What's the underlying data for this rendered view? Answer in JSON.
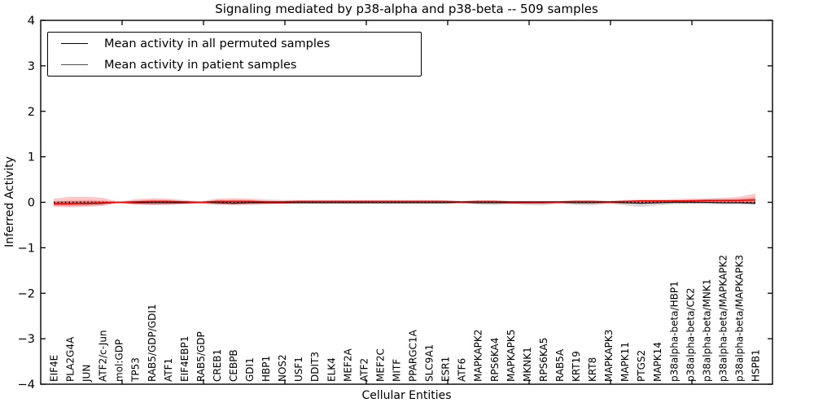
{
  "title": "Signaling mediated by p38-alpha and p38-beta -- 509 samples",
  "axes": {
    "ylabel": "Inferred Activity",
    "xlabel": "Cellular Entities"
  },
  "legend": {
    "entries": [
      {
        "label": "Mean activity in all permuted samples",
        "color": "#000000"
      },
      {
        "label": "Mean activity in patient samples",
        "color": "#ff0000"
      }
    ],
    "position": "upper left"
  },
  "chart_data": {
    "type": "line",
    "title": "Signaling mediated by p38-alpha and p38-beta -- 509 samples",
    "xlabel": "Cellular Entities",
    "ylabel": "Inferred Activity",
    "ylim": [
      -4,
      4
    ],
    "yticks": [
      4,
      3,
      2,
      1,
      0,
      -1,
      -2,
      -3,
      -4
    ],
    "grid": false,
    "legend_position": "upper left",
    "zero_line": {
      "y": 0,
      "style": "dotted",
      "color": "#000000"
    },
    "categories": [
      "EIF4E",
      "PLA2G4A",
      "JUN",
      "ATF2/c-Jun",
      "mol:GDP",
      "TP53",
      "RAB5/GDP/GDI1",
      "ATF1",
      "EIF4EBP1",
      "RAB5/GDP",
      "CREB1",
      "CEBPB",
      "GDI1",
      "HBP1",
      "NOS2",
      "USF1",
      "DDIT3",
      "ELK4",
      "MEF2A",
      "ATF2",
      "MEF2C",
      "MITF",
      "PPARGC1A",
      "SLC9A1",
      "ESR1",
      "ATF6",
      "MAPKAPK2",
      "RPS6KA4",
      "MAPKAPK5",
      "MKNK1",
      "RPS6KA5",
      "RAB5A",
      "KRT19",
      "KRT8",
      "MAPKAPK3",
      "MAPK11",
      "PTGS2",
      "MAPK14",
      "p38alpha-beta/HBP1",
      "p38alpha-beta/CK2",
      "p38alpha-beta/MNK1",
      "p38alpha-beta/MAPKAPK2",
      "p38alpha-beta/MAPKAPK3",
      "HSPB1"
    ],
    "series": [
      {
        "name": "Mean activity in all permuted samples",
        "color": "#000000",
        "band_color": "rgba(110,110,110,0.28)",
        "values": [
          -0.03,
          -0.03,
          -0.03,
          -0.02,
          0.0,
          -0.01,
          -0.01,
          -0.01,
          -0.01,
          0.0,
          -0.01,
          -0.02,
          -0.01,
          -0.01,
          -0.01,
          -0.01,
          -0.01,
          -0.01,
          -0.01,
          -0.01,
          -0.01,
          -0.01,
          -0.01,
          -0.01,
          -0.01,
          0.0,
          -0.01,
          -0.01,
          -0.01,
          -0.01,
          -0.01,
          0.0,
          -0.01,
          -0.01,
          0.0,
          -0.01,
          -0.02,
          -0.01,
          0.0,
          0.0,
          0.0,
          -0.01,
          -0.01,
          -0.02
        ],
        "band_upper": [
          0.02,
          0.03,
          0.03,
          0.02,
          0.01,
          0.02,
          0.02,
          0.02,
          0.01,
          0.01,
          0.02,
          0.02,
          0.02,
          0.02,
          0.01,
          0.01,
          0.01,
          0.01,
          0.01,
          0.01,
          0.01,
          0.01,
          0.01,
          0.01,
          0.01,
          0.01,
          0.01,
          0.01,
          0.01,
          0.01,
          0.01,
          0.01,
          0.02,
          0.02,
          0.01,
          0.03,
          0.05,
          0.03,
          0.02,
          0.02,
          0.02,
          0.02,
          0.02,
          0.02
        ],
        "band_lower": [
          -0.08,
          -0.09,
          -0.08,
          -0.06,
          -0.01,
          -0.05,
          -0.06,
          -0.06,
          -0.04,
          -0.02,
          -0.06,
          -0.07,
          -0.06,
          -0.05,
          -0.04,
          -0.03,
          -0.03,
          -0.03,
          -0.03,
          -0.03,
          -0.03,
          -0.03,
          -0.03,
          -0.03,
          -0.03,
          -0.02,
          -0.05,
          -0.06,
          -0.04,
          -0.06,
          -0.07,
          -0.03,
          -0.06,
          -0.07,
          -0.03,
          -0.07,
          -0.1,
          -0.07,
          -0.04,
          -0.04,
          -0.04,
          -0.05,
          -0.05,
          -0.06
        ]
      },
      {
        "name": "Mean activity in patient samples",
        "color": "#ff0000",
        "band_color": "rgba(255,0,0,0.22)",
        "values": [
          -0.03,
          -0.03,
          -0.02,
          -0.01,
          0.0,
          0.01,
          0.02,
          0.02,
          0.01,
          0.0,
          0.02,
          0.02,
          0.02,
          0.01,
          0.01,
          0.02,
          0.02,
          0.02,
          0.02,
          0.02,
          0.02,
          0.02,
          0.02,
          0.02,
          0.02,
          0.01,
          0.02,
          0.02,
          0.01,
          0.01,
          0.01,
          0.01,
          0.02,
          0.02,
          0.01,
          0.02,
          0.03,
          0.03,
          0.03,
          0.03,
          0.04,
          0.04,
          0.04,
          0.05
        ],
        "band_upper": [
          0.08,
          0.12,
          0.12,
          0.1,
          0.01,
          0.07,
          0.09,
          0.08,
          0.05,
          0.02,
          0.08,
          0.09,
          0.08,
          0.06,
          0.05,
          0.05,
          0.05,
          0.05,
          0.05,
          0.05,
          0.05,
          0.05,
          0.05,
          0.05,
          0.04,
          0.03,
          0.04,
          0.04,
          0.03,
          0.03,
          0.03,
          0.03,
          0.04,
          0.04,
          0.03,
          0.05,
          0.06,
          0.06,
          0.07,
          0.08,
          0.09,
          0.1,
          0.12,
          0.19
        ],
        "band_lower": [
          -0.1,
          -0.11,
          -0.1,
          -0.08,
          -0.01,
          -0.05,
          -0.06,
          -0.05,
          -0.03,
          -0.02,
          -0.04,
          -0.05,
          -0.04,
          -0.03,
          -0.02,
          -0.02,
          -0.02,
          -0.02,
          -0.02,
          -0.02,
          -0.01,
          -0.01,
          -0.01,
          -0.01,
          -0.01,
          -0.01,
          -0.01,
          -0.01,
          -0.01,
          -0.01,
          -0.01,
          -0.01,
          -0.01,
          -0.01,
          -0.01,
          -0.01,
          -0.02,
          -0.02,
          -0.01,
          -0.01,
          -0.01,
          -0.01,
          -0.02,
          -0.03
        ]
      }
    ]
  }
}
